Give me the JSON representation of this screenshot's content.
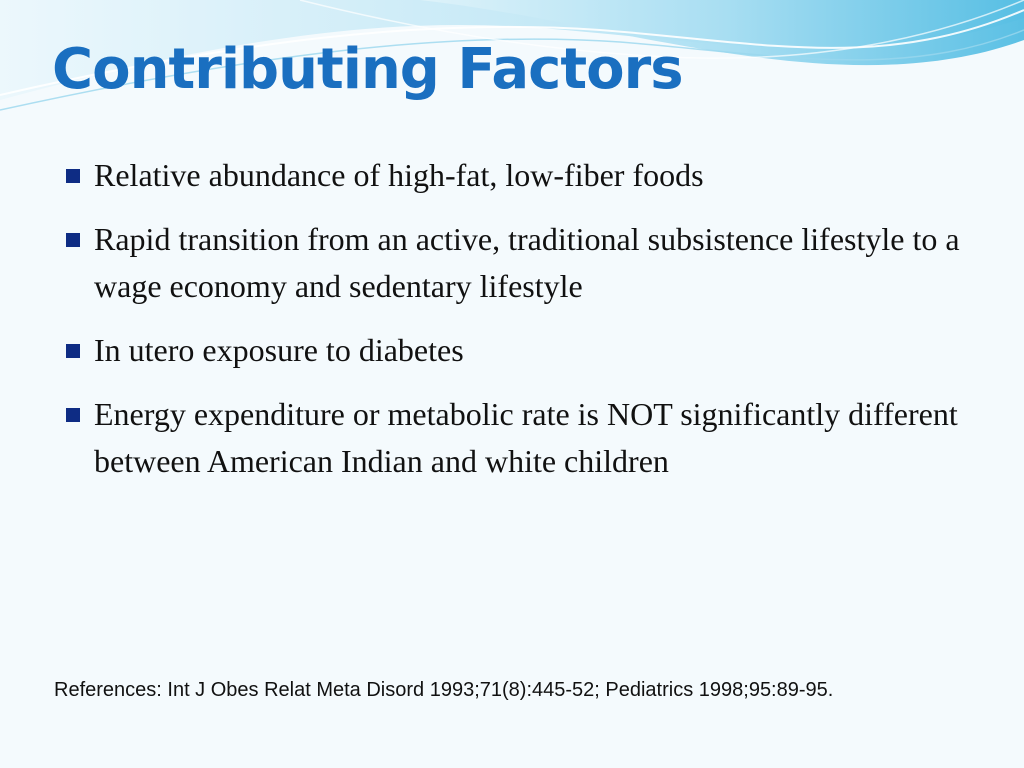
{
  "slide": {
    "title": "Contributing Factors",
    "bullets": [
      {
        "text": "Relative abundance of high-fat, low-fiber foods"
      },
      {
        "text": "Rapid transition from an active, traditional subsistence lifestyle to a wage economy and sedentary lifestyle"
      },
      {
        "text": "In utero exposure to diabetes"
      },
      {
        "text": "Energy expenditure or metabolic rate is NOT significantly different between American Indian and white children"
      }
    ],
    "references": "References: Int J Obes Relat Meta Disord 1993;71(8):445-52; Pediatrics 1998;95:89-95."
  },
  "colors": {
    "title": "#1a6fc0",
    "bullet_marker": "#0e2c84",
    "wave_light": "#bfe6f4",
    "wave_mid": "#7fcfea",
    "wave_dark": "#3fb4dc",
    "background": "#f4fafd"
  }
}
